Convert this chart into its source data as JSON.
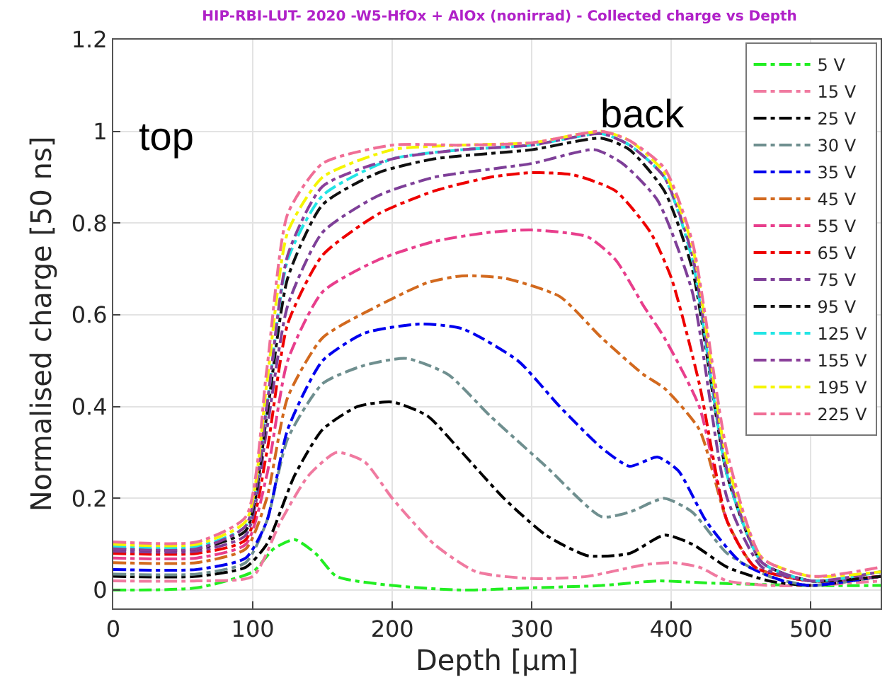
{
  "chart_data": {
    "type": "line",
    "title": "HIP-RBI-LUT- 2020 -W5-HfOx + AlOx (nonirrad) - Collected charge vs Depth",
    "xlabel": "Depth [μm]",
    "ylabel": "Normalised charge [50 ns]",
    "xlim": [
      0,
      550
    ],
    "xticks": [
      0,
      100,
      200,
      300,
      400,
      500
    ],
    "ylim": [
      -0.04,
      1.2
    ],
    "yticks": [
      0,
      0.2,
      0.4,
      0.6,
      0.8,
      1,
      1.2
    ],
    "grid": true,
    "legend": "top right",
    "line_style": "dashed",
    "marker": "none",
    "annotations": [
      "top",
      "back"
    ],
    "series": [
      {
        "name": "5 V",
        "color": "#22ee22",
        "x": [
          0,
          60,
          100,
          115,
          130,
          145,
          160,
          200,
          250,
          300,
          350,
          390,
          430,
          500,
          550
        ],
        "values": [
          0,
          0.005,
          0.04,
          0.09,
          0.11,
          0.08,
          0.03,
          0.01,
          0,
          0.005,
          0.01,
          0.02,
          0.015,
          0.01,
          0.01
        ]
      },
      {
        "name": "15 V",
        "color": "#f07aa0",
        "x": [
          0,
          60,
          100,
          120,
          140,
          160,
          180,
          200,
          230,
          260,
          300,
          340,
          380,
          400,
          420,
          440,
          470,
          500,
          550
        ],
        "values": [
          0.02,
          0.02,
          0.03,
          0.15,
          0.25,
          0.3,
          0.28,
          0.2,
          0.1,
          0.04,
          0.025,
          0.03,
          0.055,
          0.06,
          0.05,
          0.02,
          0.01,
          0.01,
          0.02
        ]
      },
      {
        "name": "25 V",
        "color": "#000000",
        "x": [
          0,
          60,
          95,
          110,
          130,
          150,
          175,
          200,
          225,
          250,
          280,
          310,
          340,
          370,
          395,
          415,
          440,
          470,
          500,
          550
        ],
        "values": [
          0.03,
          0.03,
          0.05,
          0.1,
          0.25,
          0.35,
          0.4,
          0.41,
          0.38,
          0.3,
          0.2,
          0.12,
          0.075,
          0.08,
          0.12,
          0.1,
          0.05,
          0.02,
          0.01,
          0.03
        ]
      },
      {
        "name": "30 V",
        "color": "#6f8f8f",
        "x": [
          0,
          60,
          95,
          110,
          125,
          150,
          180,
          210,
          240,
          270,
          310,
          350,
          370,
          395,
          415,
          440,
          470,
          500,
          550
        ],
        "values": [
          0.035,
          0.035,
          0.06,
          0.15,
          0.33,
          0.45,
          0.49,
          0.505,
          0.47,
          0.38,
          0.27,
          0.16,
          0.17,
          0.2,
          0.17,
          0.08,
          0.03,
          0.01,
          0.03
        ]
      },
      {
        "name": "35 V",
        "color": "#0000ee",
        "x": [
          0,
          60,
          95,
          110,
          125,
          150,
          180,
          220,
          250,
          290,
          320,
          350,
          370,
          390,
          405,
          425,
          450,
          480,
          500,
          550
        ],
        "values": [
          0.045,
          0.045,
          0.07,
          0.15,
          0.35,
          0.5,
          0.56,
          0.58,
          0.57,
          0.5,
          0.4,
          0.31,
          0.27,
          0.29,
          0.26,
          0.15,
          0.06,
          0.02,
          0.01,
          0.03
        ]
      },
      {
        "name": "45 V",
        "color": "#d2691e",
        "x": [
          0,
          60,
          95,
          110,
          125,
          150,
          190,
          225,
          250,
          280,
          320,
          350,
          380,
          395,
          420,
          440,
          460,
          500,
          550
        ],
        "values": [
          0.06,
          0.06,
          0.09,
          0.2,
          0.42,
          0.55,
          0.62,
          0.67,
          0.685,
          0.68,
          0.64,
          0.55,
          0.47,
          0.44,
          0.35,
          0.15,
          0.05,
          0.02,
          0.03
        ]
      },
      {
        "name": "55 V",
        "color": "#e83e8c",
        "x": [
          0,
          60,
          95,
          110,
          125,
          150,
          190,
          230,
          270,
          300,
          340,
          360,
          380,
          395,
          420,
          440,
          460,
          500,
          550
        ],
        "values": [
          0.07,
          0.07,
          0.1,
          0.25,
          0.5,
          0.65,
          0.72,
          0.76,
          0.78,
          0.785,
          0.77,
          0.72,
          0.62,
          0.55,
          0.4,
          0.15,
          0.05,
          0.02,
          0.03
        ]
      },
      {
        "name": "65 V",
        "color": "#ee0000",
        "x": [
          0,
          60,
          95,
          110,
          125,
          150,
          190,
          230,
          270,
          300,
          330,
          360,
          385,
          400,
          420,
          440,
          460,
          500,
          550
        ],
        "values": [
          0.08,
          0.08,
          0.11,
          0.3,
          0.58,
          0.73,
          0.82,
          0.87,
          0.9,
          0.91,
          0.905,
          0.87,
          0.78,
          0.68,
          0.45,
          0.15,
          0.05,
          0.02,
          0.03
        ]
      },
      {
        "name": "75 V",
        "color": "#7e3f98",
        "x": [
          0,
          60,
          95,
          110,
          125,
          150,
          190,
          230,
          300,
          345,
          365,
          390,
          415,
          440,
          465,
          500,
          550
        ],
        "values": [
          0.085,
          0.085,
          0.12,
          0.35,
          0.62,
          0.78,
          0.86,
          0.9,
          0.93,
          0.96,
          0.93,
          0.85,
          0.65,
          0.2,
          0.05,
          0.02,
          0.03
        ]
      },
      {
        "name": "95 V",
        "color": "#111111",
        "x": [
          0,
          60,
          95,
          110,
          125,
          150,
          190,
          230,
          300,
          350,
          370,
          395,
          415,
          440,
          465,
          500,
          550
        ],
        "values": [
          0.09,
          0.09,
          0.13,
          0.38,
          0.68,
          0.84,
          0.91,
          0.94,
          0.96,
          0.985,
          0.96,
          0.87,
          0.7,
          0.25,
          0.06,
          0.02,
          0.03
        ]
      },
      {
        "name": "125 V",
        "color": "#22e5e5",
        "x": [
          0,
          60,
          95,
          110,
          125,
          150,
          200,
          250,
          300,
          350,
          370,
          395,
          415,
          440,
          465,
          500,
          550
        ],
        "values": [
          0.095,
          0.095,
          0.14,
          0.4,
          0.72,
          0.86,
          0.94,
          0.96,
          0.97,
          0.995,
          0.97,
          0.9,
          0.72,
          0.25,
          0.06,
          0.02,
          0.04
        ]
      },
      {
        "name": "155 V",
        "color": "#8a3f9a",
        "x": [
          0,
          60,
          95,
          110,
          125,
          150,
          200,
          250,
          300,
          350,
          370,
          395,
          415,
          440,
          465,
          500,
          550
        ],
        "values": [
          0.09,
          0.09,
          0.14,
          0.4,
          0.73,
          0.88,
          0.94,
          0.96,
          0.97,
          0.995,
          0.97,
          0.9,
          0.73,
          0.26,
          0.06,
          0.02,
          0.04
        ]
      },
      {
        "name": "195 V",
        "color": "#f5f500",
        "x": [
          0,
          60,
          95,
          110,
          125,
          150,
          200,
          250,
          300,
          350,
          370,
          395,
          415,
          440,
          465,
          500,
          550
        ],
        "values": [
          0.1,
          0.1,
          0.15,
          0.45,
          0.78,
          0.9,
          0.96,
          0.97,
          0.975,
          1.0,
          0.98,
          0.91,
          0.75,
          0.28,
          0.07,
          0.03,
          0.04
        ]
      },
      {
        "name": "225 V",
        "color": "#f06e96",
        "x": [
          0,
          60,
          95,
          110,
          125,
          150,
          200,
          250,
          300,
          350,
          370,
          395,
          415,
          440,
          465,
          500,
          550
        ],
        "values": [
          0.105,
          0.105,
          0.16,
          0.48,
          0.82,
          0.93,
          0.97,
          0.97,
          0.975,
          1.0,
          0.98,
          0.92,
          0.76,
          0.3,
          0.07,
          0.03,
          0.05
        ]
      }
    ]
  }
}
